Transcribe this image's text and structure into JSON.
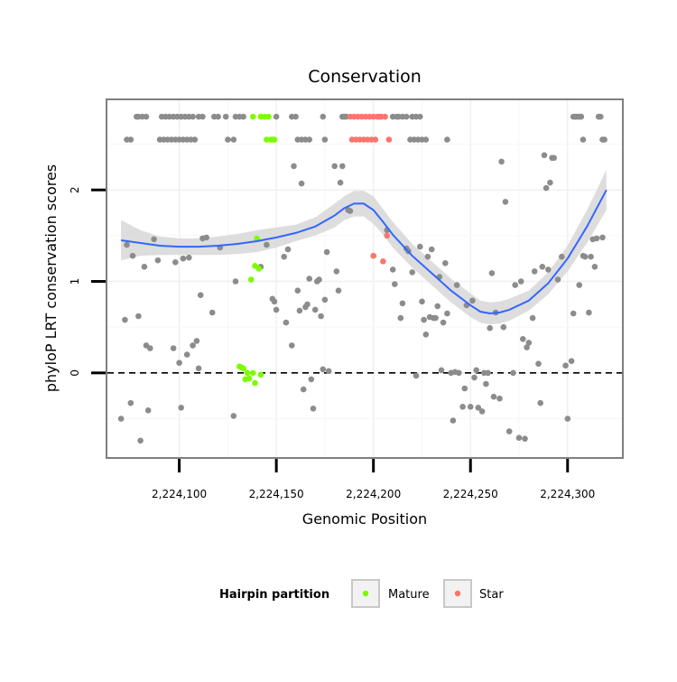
{
  "chart_data": {
    "type": "scatter",
    "title": "Conservation",
    "xlabel": "Genomic Position",
    "ylabel": "phyloP LRT conservation scores",
    "xlim": [
      2224063,
      2224328
    ],
    "ylim": [
      -0.92,
      2.98
    ],
    "x_ticks": [
      2224100,
      2224150,
      2224200,
      2224250,
      2224300
    ],
    "x_tick_labels": [
      "2,224,100",
      "2,224,150",
      "2,224,200",
      "2,224,250",
      "2,224,300"
    ],
    "y_ticks": [
      0,
      1,
      2
    ],
    "y_tick_labels": [
      "0",
      "1",
      "2"
    ],
    "reference_line": {
      "y": 0,
      "style": "dashed"
    },
    "legend": {
      "title": "Hairpin partition",
      "position": "bottom",
      "items": [
        {
          "label": "Mature",
          "color": "#7CFC00"
        },
        {
          "label": "Star",
          "color": "#F8766D"
        }
      ]
    },
    "colors": {
      "other": "#8C8C8C",
      "mature": "#7CFC00",
      "star": "#F8766D",
      "smooth": "#3366FF",
      "band": "#D9D9D9"
    },
    "series": [
      {
        "name": "Other",
        "points": [
          [
            2224070,
            -0.5
          ],
          [
            2224072,
            0.58
          ],
          [
            2224073,
            1.4
          ],
          [
            2224075,
            -0.33
          ],
          [
            2224076,
            1.28
          ],
          [
            2224079,
            0.62
          ],
          [
            2224080,
            -0.74
          ],
          [
            2224082,
            1.16
          ],
          [
            2224083,
            0.3
          ],
          [
            2224084,
            -0.41
          ],
          [
            2224085,
            0.27
          ],
          [
            2224087,
            1.46
          ],
          [
            2224089,
            1.23
          ],
          [
            2224097,
            0.27
          ],
          [
            2224098,
            1.21
          ],
          [
            2224100,
            0.11
          ],
          [
            2224101,
            -0.38
          ],
          [
            2224102,
            1.25
          ],
          [
            2224104,
            0.2
          ],
          [
            2224105,
            1.26
          ],
          [
            2224107,
            0.3
          ],
          [
            2224109,
            0.35
          ],
          [
            2224110,
            0.05
          ],
          [
            2224111,
            0.85
          ],
          [
            2224112,
            1.47
          ],
          [
            2224114,
            1.48
          ],
          [
            2224117,
            0.66
          ],
          [
            2224121,
            1.37
          ],
          [
            2224128,
            -0.47
          ],
          [
            2224129,
            1.0
          ],
          [
            2224142,
            1.16
          ],
          [
            2224145,
            1.4
          ],
          [
            2224148,
            0.81
          ],
          [
            2224149,
            0.78
          ],
          [
            2224150,
            0.69
          ],
          [
            2224154,
            1.27
          ],
          [
            2224155,
            0.55
          ],
          [
            2224156,
            1.35
          ],
          [
            2224158,
            0.3
          ],
          [
            2224159,
            2.26
          ],
          [
            2224161,
            0.9
          ],
          [
            2224162,
            0.68
          ],
          [
            2224163,
            2.07
          ],
          [
            2224164,
            -0.18
          ],
          [
            2224165,
            0.72
          ],
          [
            2224166,
            0.75
          ],
          [
            2224167,
            1.03
          ],
          [
            2224168,
            -0.07
          ],
          [
            2224169,
            -0.39
          ],
          [
            2224170,
            0.69
          ],
          [
            2224171,
            1.0
          ],
          [
            2224172,
            1.02
          ],
          [
            2224173,
            0.62
          ],
          [
            2224174,
            0.04
          ],
          [
            2224175,
            0.8
          ],
          [
            2224176,
            1.32
          ],
          [
            2224177,
            0.02
          ],
          [
            2224180,
            2.26
          ],
          [
            2224181,
            1.11
          ],
          [
            2224182,
            0.9
          ],
          [
            2224183,
            2.08
          ],
          [
            2224184,
            2.26
          ],
          [
            2224187,
            1.78
          ],
          [
            2224188,
            1.77
          ],
          [
            2224207,
            1.56
          ],
          [
            2224210,
            1.13
          ],
          [
            2224211,
            0.97
          ],
          [
            2224214,
            0.6
          ],
          [
            2224215,
            0.76
          ],
          [
            2224217,
            1.36
          ],
          [
            2224218,
            1.33
          ],
          [
            2224220,
            1.1
          ],
          [
            2224222,
            -0.03
          ],
          [
            2224224,
            1.38
          ],
          [
            2224225,
            0.78
          ],
          [
            2224226,
            0.58
          ],
          [
            2224227,
            0.42
          ],
          [
            2224228,
            1.27
          ],
          [
            2224229,
            0.61
          ],
          [
            2224230,
            1.35
          ],
          [
            2224231,
            0.6
          ],
          [
            2224232,
            0.6
          ],
          [
            2224233,
            0.73
          ],
          [
            2224234,
            1.05
          ],
          [
            2224235,
            0.03
          ],
          [
            2224236,
            0.55
          ],
          [
            2224237,
            1.2
          ],
          [
            2224238,
            0.65
          ],
          [
            2224240,
            0.0
          ],
          [
            2224241,
            -0.52
          ],
          [
            2224242,
            0.01
          ],
          [
            2224243,
            0.96
          ],
          [
            2224244,
            0.0
          ],
          [
            2224246,
            -0.37
          ],
          [
            2224247,
            -0.17
          ],
          [
            2224248,
            0.74
          ],
          [
            2224250,
            -0.37
          ],
          [
            2224251,
            0.79
          ],
          [
            2224252,
            -0.05
          ],
          [
            2224253,
            0.03
          ],
          [
            2224254,
            -0.38
          ],
          [
            2224256,
            -0.42
          ],
          [
            2224257,
            0.0
          ],
          [
            2224258,
            -0.12
          ],
          [
            2224259,
            0.0
          ],
          [
            2224260,
            0.49
          ],
          [
            2224261,
            1.09
          ],
          [
            2224262,
            -0.26
          ],
          [
            2224263,
            0.66
          ],
          [
            2224265,
            -0.28
          ],
          [
            2224266,
            2.31
          ],
          [
            2224267,
            0.5
          ],
          [
            2224268,
            1.87
          ],
          [
            2224270,
            -0.64
          ],
          [
            2224272,
            0.0
          ],
          [
            2224273,
            0.96
          ],
          [
            2224275,
            -0.71
          ],
          [
            2224276,
            1.0
          ],
          [
            2224277,
            0.37
          ],
          [
            2224278,
            -0.72
          ],
          [
            2224279,
            0.28
          ],
          [
            2224280,
            0.33
          ],
          [
            2224282,
            0.6
          ],
          [
            2224283,
            1.11
          ],
          [
            2224285,
            0.1
          ],
          [
            2224286,
            -0.33
          ],
          [
            2224287,
            1.16
          ],
          [
            2224288,
            2.38
          ],
          [
            2224289,
            2.02
          ],
          [
            2224290,
            1.13
          ],
          [
            2224291,
            2.08
          ],
          [
            2224292,
            2.35
          ],
          [
            2224293,
            2.35
          ],
          [
            2224295,
            1.02
          ],
          [
            2224297,
            1.27
          ],
          [
            2224299,
            0.08
          ],
          [
            2224300,
            -0.5
          ],
          [
            2224302,
            0.13
          ],
          [
            2224303,
            0.65
          ],
          [
            2224306,
            0.96
          ],
          [
            2224308,
            1.28
          ],
          [
            2224309,
            1.27
          ],
          [
            2224311,
            0.66
          ],
          [
            2224312,
            1.27
          ],
          [
            2224313,
            1.46
          ],
          [
            2224314,
            1.16
          ],
          [
            2224315,
            1.47
          ],
          [
            2224318,
            1.48
          ],
          [
            2224073,
            2.55
          ],
          [
            2224075,
            2.55
          ],
          [
            2224078,
            2.8
          ],
          [
            2224079,
            2.8
          ],
          [
            2224081,
            2.8
          ],
          [
            2224083,
            2.8
          ],
          [
            2224090,
            2.55
          ],
          [
            2224091,
            2.8
          ],
          [
            2224092,
            2.55
          ],
          [
            2224093,
            2.8
          ],
          [
            2224094,
            2.55
          ],
          [
            2224095,
            2.8
          ],
          [
            2224096,
            2.55
          ],
          [
            2224097,
            2.8
          ],
          [
            2224098,
            2.55
          ],
          [
            2224099,
            2.8
          ],
          [
            2224100,
            2.55
          ],
          [
            2224101,
            2.8
          ],
          [
            2224102,
            2.55
          ],
          [
            2224103,
            2.8
          ],
          [
            2224104,
            2.55
          ],
          [
            2224105,
            2.8
          ],
          [
            2224106,
            2.55
          ],
          [
            2224107,
            2.8
          ],
          [
            2224108,
            2.55
          ],
          [
            2224110,
            2.8
          ],
          [
            2224112,
            2.8
          ],
          [
            2224118,
            2.8
          ],
          [
            2224120,
            2.8
          ],
          [
            2224124,
            2.8
          ],
          [
            2224125,
            2.55
          ],
          [
            2224128,
            2.55
          ],
          [
            2224129,
            2.8
          ],
          [
            2224131,
            2.8
          ],
          [
            2224133,
            2.8
          ],
          [
            2224150,
            2.8
          ],
          [
            2224158,
            2.8
          ],
          [
            2224160,
            2.8
          ],
          [
            2224161,
            2.55
          ],
          [
            2224163,
            2.55
          ],
          [
            2224165,
            2.55
          ],
          [
            2224167,
            2.55
          ],
          [
            2224174,
            2.8
          ],
          [
            2224175,
            2.55
          ],
          [
            2224184,
            2.8
          ],
          [
            2224185,
            2.8
          ],
          [
            2224186,
            2.8
          ],
          [
            2224210,
            2.8
          ],
          [
            2224212,
            2.8
          ],
          [
            2224213,
            2.8
          ],
          [
            2224215,
            2.8
          ],
          [
            2224217,
            2.8
          ],
          [
            2224219,
            2.55
          ],
          [
            2224220,
            2.8
          ],
          [
            2224221,
            2.55
          ],
          [
            2224222,
            2.8
          ],
          [
            2224223,
            2.55
          ],
          [
            2224224,
            2.8
          ],
          [
            2224225,
            2.55
          ],
          [
            2224227,
            2.55
          ],
          [
            2224238,
            2.55
          ],
          [
            2224303,
            2.8
          ],
          [
            2224304,
            2.8
          ],
          [
            2224305,
            2.8
          ],
          [
            2224306,
            2.8
          ],
          [
            2224307,
            2.8
          ],
          [
            2224308,
            2.55
          ],
          [
            2224316,
            2.8
          ],
          [
            2224317,
            2.8
          ],
          [
            2224318,
            2.55
          ],
          [
            2224319,
            2.55
          ]
        ]
      },
      {
        "name": "Mature",
        "points": [
          [
            2224131,
            0.07
          ],
          [
            2224132,
            0.06
          ],
          [
            2224133,
            0.05
          ],
          [
            2224134,
            -0.07
          ],
          [
            2224135,
            0.0
          ],
          [
            2224136,
            -0.06
          ],
          [
            2224137,
            1.02
          ],
          [
            2224138,
            0.0
          ],
          [
            2224139,
            -0.11
          ],
          [
            2224139,
            1.17
          ],
          [
            2224140,
            1.47
          ],
          [
            2224141,
            1.14
          ],
          [
            2224142,
            -0.02
          ],
          [
            2224138,
            2.8
          ],
          [
            2224142,
            2.8
          ],
          [
            2224144,
            2.8
          ],
          [
            2224145,
            2.55
          ],
          [
            2224146,
            2.8
          ],
          [
            2224147,
            2.55
          ],
          [
            2224148,
            2.55
          ],
          [
            2224149,
            2.55
          ]
        ]
      },
      {
        "name": "Star",
        "points": [
          [
            2224200,
            1.28
          ],
          [
            2224205,
            1.22
          ],
          [
            2224207,
            1.5
          ],
          [
            2224188,
            2.8
          ],
          [
            2224189,
            2.55
          ],
          [
            2224190,
            2.8
          ],
          [
            2224191,
            2.55
          ],
          [
            2224192,
            2.8
          ],
          [
            2224193,
            2.55
          ],
          [
            2224194,
            2.8
          ],
          [
            2224195,
            2.55
          ],
          [
            2224196,
            2.8
          ],
          [
            2224197,
            2.55
          ],
          [
            2224198,
            2.8
          ],
          [
            2224199,
            2.55
          ],
          [
            2224200,
            2.8
          ],
          [
            2224201,
            2.55
          ],
          [
            2224202,
            2.8
          ],
          [
            2224203,
            2.8
          ],
          [
            2224204,
            2.8
          ],
          [
            2224206,
            2.8
          ],
          [
            2224208,
            2.55
          ]
        ]
      }
    ],
    "smooth": {
      "x": [
        2224070,
        2224080,
        2224090,
        2224100,
        2224110,
        2224120,
        2224130,
        2224140,
        2224150,
        2224160,
        2224170,
        2224180,
        2224185,
        2224190,
        2224195,
        2224200,
        2224205,
        2224210,
        2224220,
        2224230,
        2224240,
        2224250,
        2224255,
        2224260,
        2224265,
        2224270,
        2224280,
        2224290,
        2224300,
        2224310,
        2224320
      ],
      "y": [
        1.45,
        1.42,
        1.39,
        1.38,
        1.38,
        1.39,
        1.41,
        1.44,
        1.48,
        1.53,
        1.6,
        1.72,
        1.8,
        1.85,
        1.85,
        1.78,
        1.65,
        1.51,
        1.28,
        1.09,
        0.9,
        0.74,
        0.67,
        0.65,
        0.66,
        0.69,
        0.79,
        0.98,
        1.25,
        1.6,
        2.0
      ],
      "lower": [
        1.23,
        1.28,
        1.29,
        1.29,
        1.29,
        1.29,
        1.3,
        1.32,
        1.37,
        1.44,
        1.5,
        1.59,
        1.67,
        1.71,
        1.71,
        1.63,
        1.51,
        1.37,
        1.15,
        0.96,
        0.77,
        0.61,
        0.55,
        0.53,
        0.54,
        0.57,
        0.68,
        0.86,
        1.11,
        1.42,
        1.78
      ],
      "upper": [
        1.67,
        1.56,
        1.49,
        1.47,
        1.47,
        1.49,
        1.52,
        1.56,
        1.59,
        1.62,
        1.7,
        1.85,
        1.93,
        1.99,
        1.99,
        1.93,
        1.79,
        1.65,
        1.41,
        1.22,
        1.03,
        0.87,
        0.79,
        0.77,
        0.78,
        0.81,
        0.9,
        1.1,
        1.39,
        1.78,
        2.22
      ]
    }
  }
}
